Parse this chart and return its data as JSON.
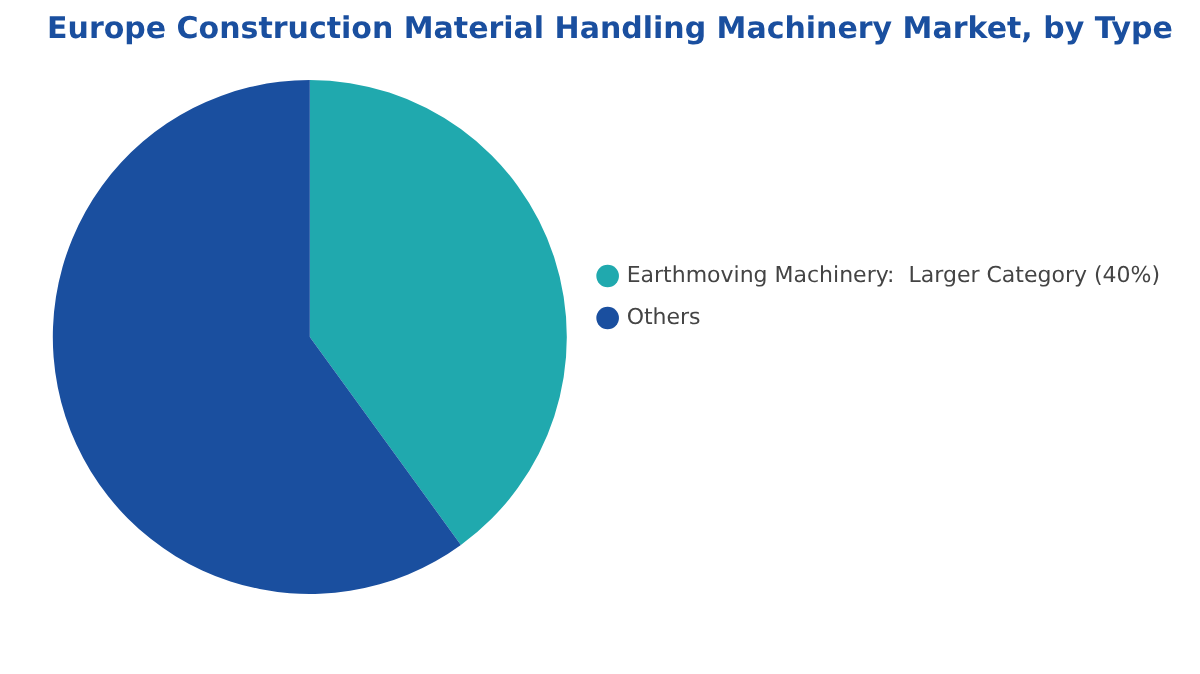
{
  "chart_data": {
    "type": "pie",
    "title": "Europe Construction Material Handling Machinery Market, by Type",
    "categories": [
      "Earthmoving Machinery:  Larger Category (40%)",
      "Others"
    ],
    "values": [
      40,
      60
    ],
    "colors": [
      "#20a9ae",
      "#1a4f9f"
    ],
    "legend": "right"
  }
}
